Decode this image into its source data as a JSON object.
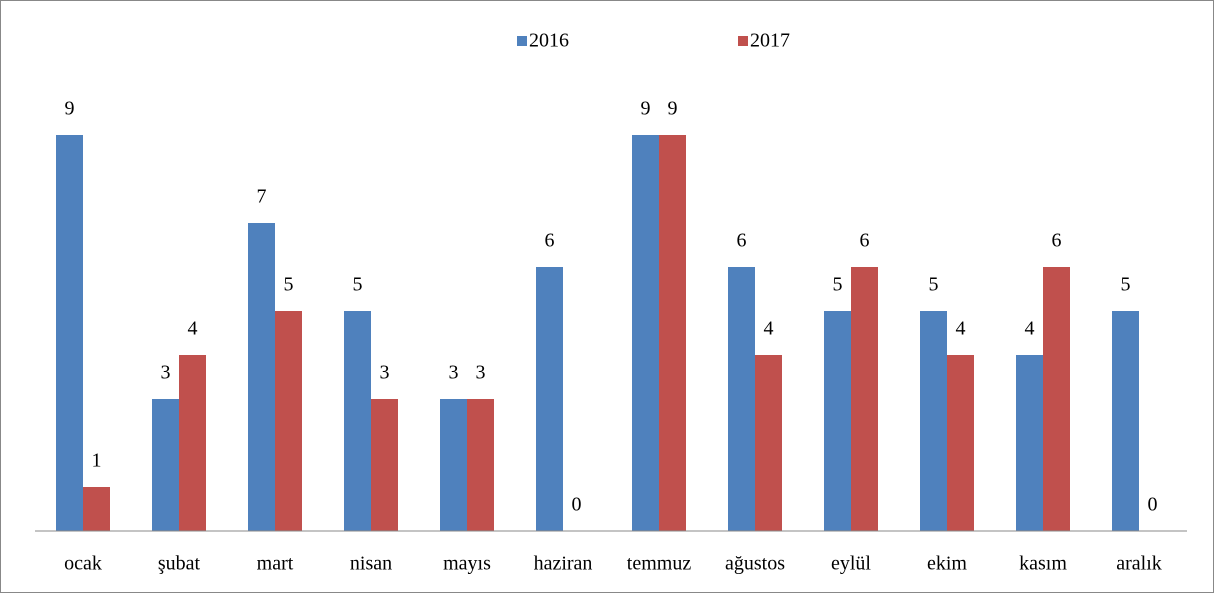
{
  "chart_data": {
    "type": "bar",
    "categories": [
      "ocak",
      "şubat",
      "mart",
      "nisan",
      "mayıs",
      "haziran",
      "temmuz",
      "ağustos",
      "eylül",
      "ekim",
      "kasım",
      "aralık"
    ],
    "series": [
      {
        "name": "2016",
        "color": "#4f81bd",
        "values": [
          9,
          3,
          7,
          5,
          3,
          6,
          9,
          6,
          5,
          5,
          4,
          5
        ]
      },
      {
        "name": "2017",
        "color": "#c0504d",
        "values": [
          1,
          4,
          5,
          3,
          3,
          0,
          9,
          4,
          6,
          4,
          6,
          0
        ]
      }
    ],
    "legend": "top"
  }
}
